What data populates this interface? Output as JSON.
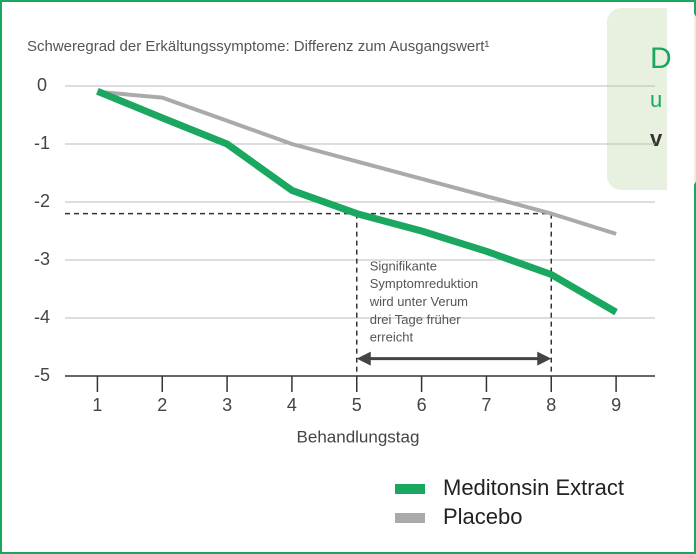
{
  "chart_data": {
    "type": "line",
    "title": "Schweregrad der Erkältungssymptome: Differenz zum Ausgangswert¹",
    "xlabel": "Behandlungstag",
    "x": [
      1,
      2,
      3,
      4,
      5,
      6,
      7,
      8,
      9
    ],
    "series": [
      {
        "name": "Meditonsin Extract",
        "color": "#1aa760",
        "values": [
          -0.09,
          -0.55,
          -1.0,
          -1.8,
          -2.2,
          -2.5,
          -2.85,
          -3.25,
          -3.9
        ]
      },
      {
        "name": "Placebo",
        "color": "#aaaaaa",
        "values": [
          -0.1,
          -0.2,
          -0.6,
          -1.0,
          -1.3,
          -1.6,
          -1.9,
          -2.2,
          -2.55
        ]
      }
    ],
    "xlim": [
      0.5,
      9.6
    ],
    "ylim": [
      -5,
      0
    ],
    "xticks": [
      1,
      2,
      3,
      4,
      5,
      6,
      7,
      8,
      9
    ],
    "yticks": [
      0,
      -1,
      -2,
      -3,
      -4,
      -5
    ],
    "grid": true,
    "annotation": {
      "text": [
        "Signifikante",
        "Symptomreduktion",
        "wird unter Verum",
        "drei Tage früher",
        "erreicht"
      ],
      "y": -2.2,
      "x_range": [
        5,
        8
      ],
      "arrow_y": -4.7
    },
    "side_panel": [
      "D",
      "u",
      "v"
    ]
  }
}
